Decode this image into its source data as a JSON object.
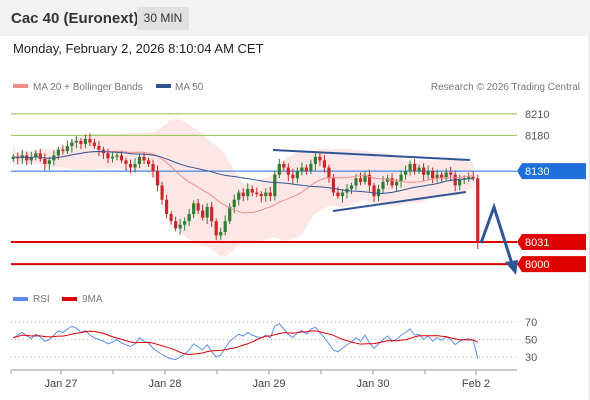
{
  "header": {
    "title": "Cac 40 (Euronext)",
    "timeframe": "30 MIN",
    "datetime": "Monday, February 2, 2026 8:10:04 AM CET"
  },
  "legend": {
    "bollinger": "MA 20 + Bollinger Bands",
    "ma50": "MA 50",
    "copyright": "Research © 2026 Trading Central"
  },
  "rsi_legend": {
    "rsi": "RSI",
    "ma9": "9MA"
  },
  "colors": {
    "bollinger": "#f28c8c",
    "ma50": "#2f5597",
    "resistance": "#8bc34a",
    "pivot": "#1e6fd9",
    "support": "#e00000",
    "arrow": "#2f5597",
    "rsi": "#5b8def",
    "rsi_ma": "#e00000",
    "candle_up": "#2e7d32",
    "candle_down": "#c62828"
  },
  "chart_data": [
    {
      "type": "candlestick",
      "x_labels": [
        "Jan 27",
        "Jan 28",
        "Jan 29",
        "Jan 30",
        "Feb 2"
      ],
      "ylim": [
        7975,
        8235
      ],
      "levels": [
        {
          "role": "resistance",
          "value": 8210,
          "label": "8210"
        },
        {
          "role": "resistance",
          "value": 8180,
          "label": "8180"
        },
        {
          "role": "pivot",
          "value": 8130,
          "label": "8130"
        },
        {
          "role": "support",
          "value": 8031,
          "label": "8031"
        },
        {
          "role": "support",
          "value": 8000,
          "label": "8000"
        }
      ],
      "close_series": [
        8150,
        8148,
        8152,
        8145,
        8150,
        8155,
        8147,
        8140,
        8145,
        8152,
        8160,
        8158,
        8165,
        8170,
        8172,
        8168,
        8175,
        8170,
        8165,
        8160,
        8155,
        8148,
        8150,
        8152,
        8145,
        8140,
        8135,
        8140,
        8150,
        8145,
        8140,
        8130,
        8110,
        8090,
        8070,
        8060,
        8050,
        8055,
        8060,
        8070,
        8085,
        8075,
        8065,
        8080,
        8060,
        8040,
        8045,
        8060,
        8080,
        8090,
        8100,
        8095,
        8105,
        8100,
        8098,
        8095,
        8100,
        8095,
        8125,
        8140,
        8135,
        8125,
        8120,
        8130,
        8135,
        8130,
        8140,
        8150,
        8145,
        8135,
        8120,
        8100,
        8095,
        8100,
        8105,
        8110,
        8120,
        8115,
        8125,
        8110,
        8095,
        8105,
        8115,
        8120,
        8110,
        8115,
        8125,
        8130,
        8140,
        8130,
        8135,
        8125,
        8130,
        8120,
        8125,
        8120,
        8128,
        8125,
        8110,
        8118,
        8120,
        8122,
        8120,
        8030
      ]
    },
    {
      "type": "line",
      "name": "RSI",
      "ylim": [
        22,
        78
      ],
      "y_ticks": [
        70,
        50,
        30
      ],
      "rsi": [
        52,
        55,
        58,
        54,
        51,
        56,
        53,
        48,
        50,
        55,
        60,
        58,
        62,
        65,
        63,
        58,
        60,
        55,
        52,
        50,
        48,
        45,
        47,
        50,
        46,
        44,
        42,
        45,
        52,
        48,
        46,
        40,
        36,
        33,
        30,
        28,
        27,
        30,
        33,
        38,
        45,
        42,
        38,
        44,
        36,
        30,
        32,
        40,
        48,
        52,
        56,
        54,
        58,
        55,
        53,
        52,
        55,
        52,
        65,
        68,
        62,
        56,
        52,
        58,
        60,
        56,
        62,
        64,
        58,
        52,
        45,
        38,
        36,
        40,
        44,
        47,
        52,
        48,
        55,
        46,
        40,
        45,
        50,
        54,
        48,
        50,
        55,
        58,
        62,
        55,
        56,
        50,
        54,
        48,
        52,
        49,
        53,
        50,
        44,
        48,
        50,
        51,
        49,
        28
      ]
    }
  ],
  "axis_labels": {
    "rsi_ticks": [
      "70",
      "50",
      "30"
    ],
    "x_ticks": [
      "Jan 27",
      "Jan 28",
      "Jan 29",
      "Jan 30",
      "Feb 2"
    ]
  }
}
